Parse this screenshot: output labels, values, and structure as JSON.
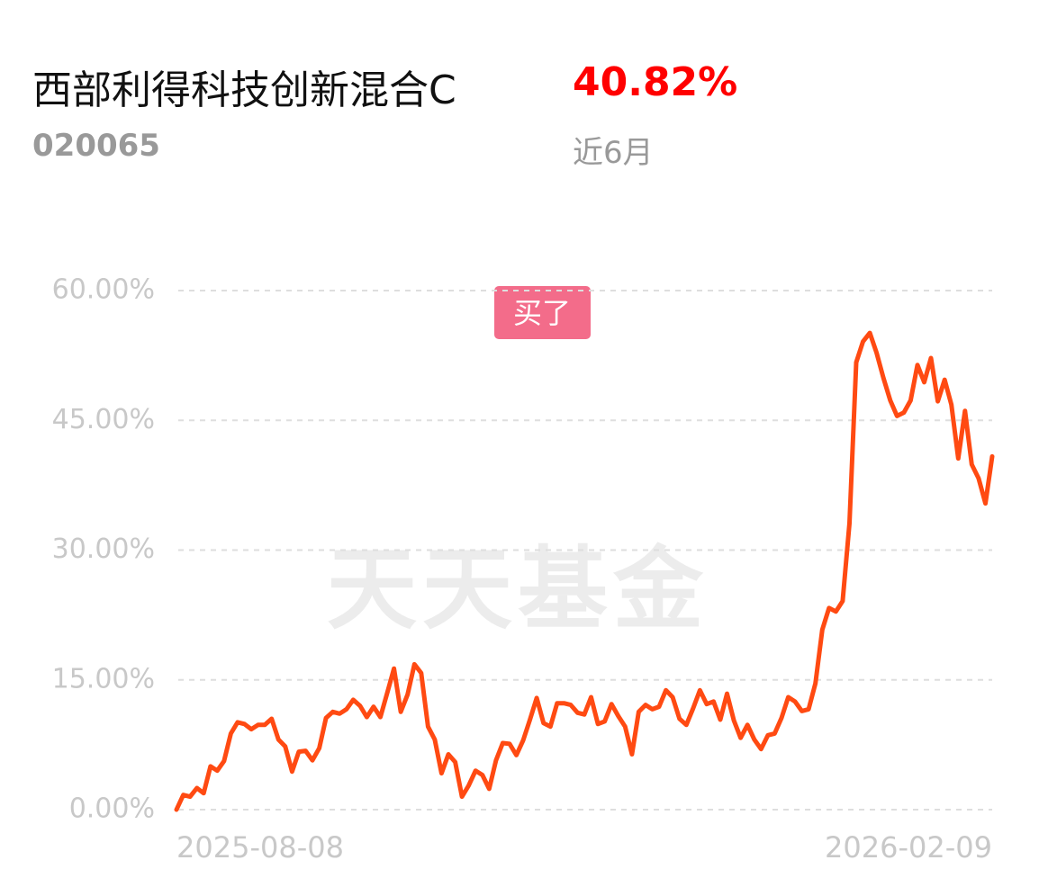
{
  "header": {
    "title": "西部利得科技创新混合C",
    "return": "40.82%",
    "code": "020065",
    "period": "近6月"
  },
  "watermark": "天天基金",
  "buy_marker": "买了",
  "chart_data": {
    "type": "line",
    "color": "#ff4a12",
    "categories": [
      "2025-08-08",
      null,
      null,
      null,
      null,
      null,
      null,
      null,
      null,
      null,
      null,
      null,
      null,
      null,
      null,
      null,
      null,
      null,
      null,
      null,
      null,
      null,
      null,
      null,
      null,
      null,
      null,
      null,
      null,
      null,
      null,
      null,
      null,
      null,
      null,
      null,
      null,
      null,
      null,
      null,
      null,
      null,
      null,
      null,
      null,
      null,
      null,
      null,
      null,
      null,
      null,
      null,
      null,
      null,
      null,
      null,
      null,
      null,
      null,
      null,
      null,
      null,
      null,
      null,
      null,
      null,
      null,
      null,
      null,
      null,
      null,
      null,
      null,
      null,
      null,
      null,
      null,
      null,
      null,
      null,
      null,
      null,
      null,
      null,
      null,
      null,
      null,
      null,
      null,
      null,
      null,
      null,
      null,
      null,
      null,
      null,
      null,
      null,
      null,
      null,
      null,
      null,
      null,
      null,
      null,
      null,
      null,
      null,
      null,
      null,
      null,
      null,
      null,
      null,
      null,
      null,
      null,
      null,
      null,
      null,
      "2026-02-09"
    ],
    "values": [
      0,
      1.7,
      1.5,
      2.5,
      1.9,
      5.0,
      4.5,
      5.6,
      8.8,
      10.1,
      9.9,
      9.3,
      9.8,
      9.8,
      10.5,
      8.1,
      7.3,
      4.4,
      6.7,
      6.8,
      5.7,
      7.1,
      10.6,
      11.3,
      11.1,
      11.6,
      12.7,
      12.0,
      10.7,
      11.9,
      10.7,
      13.5,
      16.3,
      11.3,
      13.3,
      16.8,
      15.8,
      9.6,
      8.1,
      4.2,
      6.4,
      5.5,
      1.5,
      2.8,
      4.5,
      4.0,
      2.4,
      5.7,
      7.7,
      7.6,
      6.3,
      8.0,
      10.4,
      12.9,
      10.0,
      9.6,
      12.3,
      12.3,
      12.1,
      11.2,
      11.0,
      13.0,
      9.9,
      10.2,
      12.2,
      10.8,
      9.6,
      6.4,
      11.3,
      12.1,
      11.6,
      11.9,
      13.8,
      13.0,
      10.5,
      9.8,
      11.7,
      13.8,
      12.2,
      12.5,
      10.4,
      13.4,
      10.3,
      8.3,
      9.8,
      8.1,
      7.0,
      8.6,
      8.8,
      10.6,
      13.0,
      12.5,
      11.4,
      11.6,
      14.6,
      20.8,
      23.3,
      22.9,
      24.1,
      33.1,
      51.7,
      54.1,
      55.1,
      52.8,
      49.9,
      47.3,
      45.5,
      45.9,
      47.3,
      51.4,
      49.4,
      52.2,
      47.2,
      49.7,
      46.8,
      40.6,
      46.1,
      39.9,
      38.3,
      35.4,
      40.82
    ],
    "ylim": [
      0,
      60
    ],
    "yticks": [
      {
        "value": 0,
        "label": "0.00%"
      },
      {
        "value": 15,
        "label": "15.00%"
      },
      {
        "value": 30,
        "label": "30.00%"
      },
      {
        "value": 45,
        "label": "45.00%"
      },
      {
        "value": 60,
        "label": "60.00%"
      }
    ],
    "grid": true
  }
}
